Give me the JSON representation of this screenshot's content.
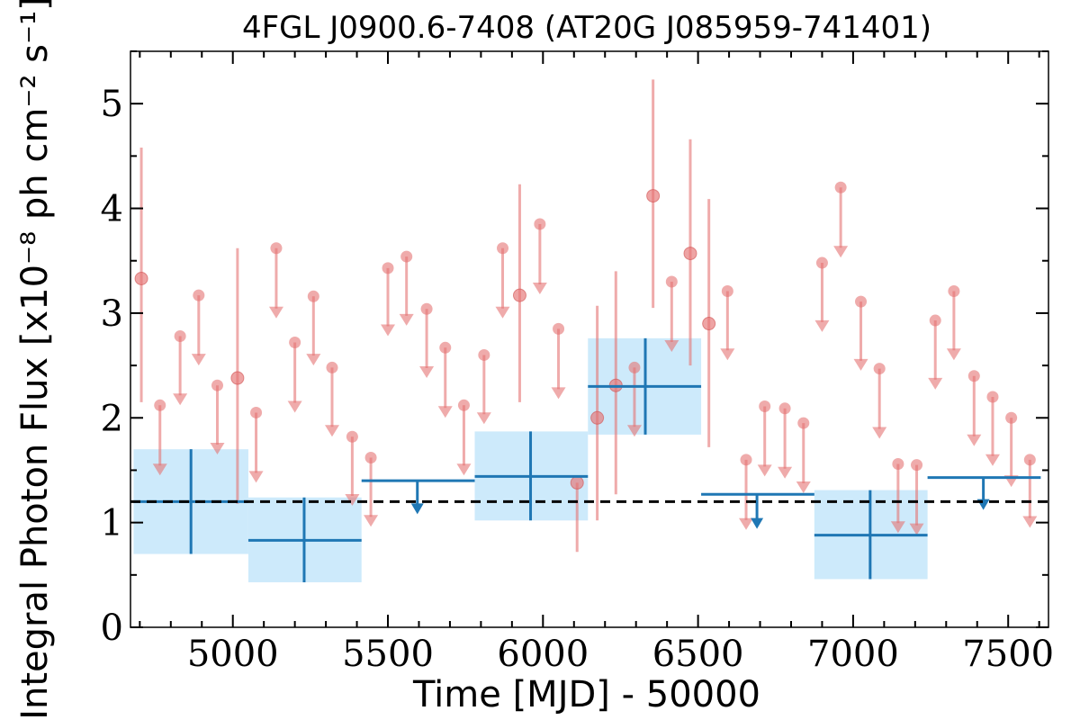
{
  "chart_data": {
    "type": "scatter",
    "title": "4FGL J0900.6-7408 (AT20G J085959-741401)",
    "xlabel": "Time [MJD] - 50000",
    "ylabel": "Integral Photon Flux [x10⁻⁸ ph cm⁻² s⁻¹]",
    "xlim": [
      4670,
      7630
    ],
    "ylim": [
      0,
      5.5
    ],
    "x_ticks": [
      "5000",
      "5500",
      "6000",
      "6500",
      "7000",
      "7500"
    ],
    "y_ticks": [
      "0",
      "1",
      "2",
      "3",
      "4",
      "5"
    ],
    "reference_line": {
      "y": 1.2,
      "style": "dashed"
    },
    "colors": {
      "short_bins": "#e57373",
      "long_bins": "#1f77b4",
      "long_bins_fill": "#cdeafb",
      "reference": "#000000"
    },
    "series": [
      {
        "role": "short_bins",
        "detections": [
          {
            "x": 4705,
            "y": 3.33,
            "lo": 2.15,
            "hi": 4.58
          },
          {
            "x": 5015,
            "y": 2.38,
            "lo": 1.18,
            "hi": 3.62
          },
          {
            "x": 5925,
            "y": 3.17,
            "lo": 2.15,
            "hi": 4.23
          },
          {
            "x": 6110,
            "y": 1.38,
            "lo": 0.72,
            "hi": 1.38
          },
          {
            "x": 6175,
            "y": 2.0,
            "lo": 1.02,
            "hi": 3.07
          },
          {
            "x": 6235,
            "y": 2.31,
            "lo": 1.27,
            "hi": 3.4
          },
          {
            "x": 6355,
            "y": 4.12,
            "lo": 3.05,
            "hi": 5.23
          },
          {
            "x": 6475,
            "y": 3.57,
            "lo": 2.5,
            "hi": 4.66
          },
          {
            "x": 6535,
            "y": 2.9,
            "lo": 1.72,
            "hi": 4.09
          }
        ],
        "upper_limits": [
          {
            "x": 4765,
            "y": 2.12,
            "arrow_to": 1.45
          },
          {
            "x": 4830,
            "y": 2.78,
            "arrow_to": 2.12
          },
          {
            "x": 4890,
            "y": 3.17,
            "arrow_to": 2.5
          },
          {
            "x": 4950,
            "y": 2.31,
            "arrow_to": 1.65
          },
          {
            "x": 5075,
            "y": 2.05,
            "arrow_to": 1.38
          },
          {
            "x": 5140,
            "y": 3.62,
            "arrow_to": 2.95
          },
          {
            "x": 5200,
            "y": 2.72,
            "arrow_to": 2.05
          },
          {
            "x": 5260,
            "y": 3.16,
            "arrow_to": 2.5
          },
          {
            "x": 5320,
            "y": 2.48,
            "arrow_to": 1.82
          },
          {
            "x": 5385,
            "y": 1.82,
            "arrow_to": 1.16
          },
          {
            "x": 5445,
            "y": 1.62,
            "arrow_to": 0.96
          },
          {
            "x": 5500,
            "y": 3.43,
            "arrow_to": 2.78
          },
          {
            "x": 5560,
            "y": 3.54,
            "arrow_to": 2.88
          },
          {
            "x": 5625,
            "y": 3.04,
            "arrow_to": 2.38
          },
          {
            "x": 5685,
            "y": 2.67,
            "arrow_to": 2.0
          },
          {
            "x": 5745,
            "y": 2.12,
            "arrow_to": 1.45
          },
          {
            "x": 5810,
            "y": 2.6,
            "arrow_to": 1.94
          },
          {
            "x": 5870,
            "y": 3.62,
            "arrow_to": 2.95
          },
          {
            "x": 5990,
            "y": 3.85,
            "arrow_to": 3.18
          },
          {
            "x": 6050,
            "y": 2.85,
            "arrow_to": 2.18
          },
          {
            "x": 6295,
            "y": 2.48,
            "arrow_to": 1.82
          },
          {
            "x": 6415,
            "y": 3.3,
            "arrow_to": 2.63
          },
          {
            "x": 6595,
            "y": 3.21,
            "arrow_to": 2.55
          },
          {
            "x": 6655,
            "y": 1.6,
            "arrow_to": 0.93
          },
          {
            "x": 6715,
            "y": 2.11,
            "arrow_to": 1.44
          },
          {
            "x": 6780,
            "y": 2.09,
            "arrow_to": 1.42
          },
          {
            "x": 6840,
            "y": 1.95,
            "arrow_to": 1.28
          },
          {
            "x": 6900,
            "y": 3.48,
            "arrow_to": 2.82
          },
          {
            "x": 6960,
            "y": 4.2,
            "arrow_to": 3.53
          },
          {
            "x": 7025,
            "y": 3.11,
            "arrow_to": 2.45
          },
          {
            "x": 7085,
            "y": 2.47,
            "arrow_to": 1.8
          },
          {
            "x": 7145,
            "y": 1.56,
            "arrow_to": 0.9
          },
          {
            "x": 7205,
            "y": 1.55,
            "arrow_to": 0.88
          },
          {
            "x": 7265,
            "y": 2.93,
            "arrow_to": 2.27
          },
          {
            "x": 7325,
            "y": 3.21,
            "arrow_to": 2.55
          },
          {
            "x": 7390,
            "y": 2.4,
            "arrow_to": 1.73
          },
          {
            "x": 7450,
            "y": 2.2,
            "arrow_to": 1.54
          },
          {
            "x": 7510,
            "y": 2.0,
            "arrow_to": 1.34
          },
          {
            "x": 7570,
            "y": 1.6,
            "arrow_to": 0.95
          }
        ]
      },
      {
        "role": "long_bins",
        "detections": [
          {
            "x": 4865,
            "x0": 4680,
            "x1": 5050,
            "y": 1.2,
            "lo": 0.7,
            "hi": 1.7
          },
          {
            "x": 5230,
            "x0": 5050,
            "x1": 5415,
            "y": 0.83,
            "lo": 0.43,
            "hi": 1.24
          },
          {
            "x": 5960,
            "x0": 5780,
            "x1": 6145,
            "y": 1.44,
            "lo": 1.02,
            "hi": 1.87
          },
          {
            "x": 6330,
            "x0": 6145,
            "x1": 6510,
            "y": 2.3,
            "lo": 1.84,
            "hi": 2.76
          },
          {
            "x": 7055,
            "x0": 6875,
            "x1": 7240,
            "y": 0.88,
            "lo": 0.46,
            "hi": 1.31
          }
        ],
        "upper_limits": [
          {
            "x": 5595,
            "x0": 5415,
            "x1": 5780,
            "y": 1.4,
            "arrow_to": 1.08
          },
          {
            "x": 6690,
            "x0": 6510,
            "x1": 6875,
            "y": 1.27,
            "arrow_to": 0.94
          },
          {
            "x": 7420,
            "x0": 7240,
            "x1": 7605,
            "y": 1.43,
            "arrow_to": 1.12
          }
        ]
      }
    ]
  }
}
